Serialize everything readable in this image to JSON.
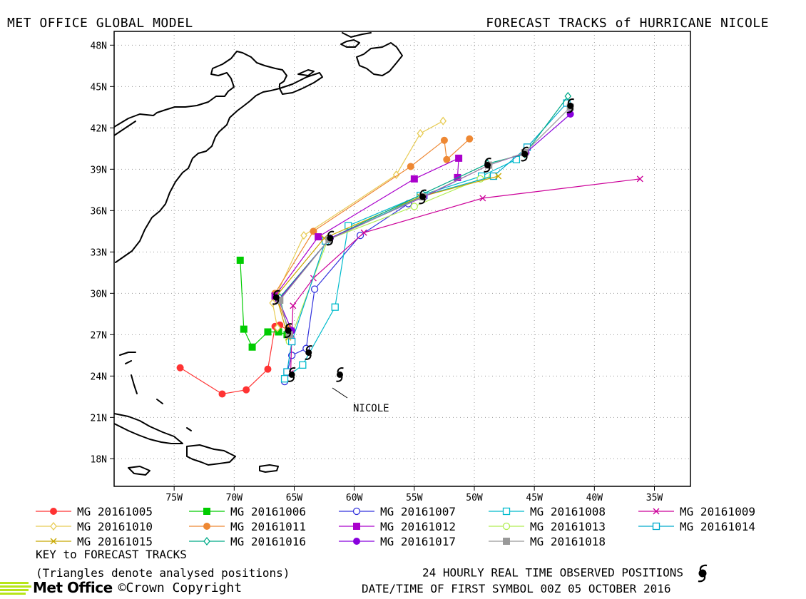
{
  "header": {
    "left_title": "MET OFFICE GLOBAL MODEL",
    "right_title": "FORECAST TRACKS of HURRICANE NICOLE"
  },
  "map": {
    "lon_range": [
      -80,
      -32
    ],
    "lat_range": [
      16,
      49
    ],
    "lon_ticks": [
      "75W",
      "70W",
      "65W",
      "60W",
      "55W",
      "50W",
      "45W",
      "40W",
      "35W"
    ],
    "lat_ticks": [
      "48N",
      "45N",
      "42N",
      "39N",
      "36N",
      "33N",
      "30N",
      "27N",
      "24N",
      "21N",
      "18N"
    ],
    "storm_label": "NICOLE",
    "grid": "dotted"
  },
  "legend": {
    "items": [
      {
        "label": "MG 20161005",
        "color": "#ff3333",
        "marker": "filled-circle"
      },
      {
        "label": "MG 20161006",
        "color": "#00cc00",
        "marker": "filled-square"
      },
      {
        "label": "MG 20161007",
        "color": "#3333dd",
        "marker": "open-circle"
      },
      {
        "label": "MG 20161008",
        "color": "#00bbcc",
        "marker": "open-square"
      },
      {
        "label": "MG 20161009",
        "color": "#cc0099",
        "marker": "cross"
      },
      {
        "label": "MG 20161010",
        "color": "#e8cc55",
        "marker": "open-diamond"
      },
      {
        "label": "MG 20161011",
        "color": "#ee8833",
        "marker": "filled-circle"
      },
      {
        "label": "MG 20161012",
        "color": "#aa00cc",
        "marker": "filled-square"
      },
      {
        "label": "MG 20161013",
        "color": "#b0ee50",
        "marker": "open-circle"
      },
      {
        "label": "MG 20161014",
        "color": "#00aacc",
        "marker": "open-square"
      },
      {
        "label": "MG 20161015",
        "color": "#c8a800",
        "marker": "cross"
      },
      {
        "label": "MG 20161016",
        "color": "#00aa88",
        "marker": "open-diamond"
      },
      {
        "label": "MG 20161017",
        "color": "#8800dd",
        "marker": "filled-circle"
      },
      {
        "label": "MG 20161018",
        "color": "#999999",
        "marker": "filled-square"
      }
    ]
  },
  "footer": {
    "key_title": "KEY to FORECAST TRACKS",
    "key_note": "(Triangles denote analysed positions)",
    "obs_note": "24 HOURLY REAL TIME OBSERVED POSITIONS",
    "date_note": "DATE/TIME OF FIRST SYMBOL 00Z 05 OCTOBER 2016",
    "logo_text": "Met Office",
    "copyright": "©Crown Copyright"
  },
  "tracks": [
    {
      "name": "MG 20161005",
      "color": "#ff3333",
      "marker": "filled-circle",
      "points": [
        [
          -74.5,
          24.6
        ],
        [
          -71,
          22.7
        ],
        [
          -69,
          23
        ],
        [
          -67.2,
          24.5
        ],
        [
          -66.6,
          27.6
        ],
        [
          -66.2,
          27.7
        ],
        [
          -65.5,
          27.3
        ]
      ]
    },
    {
      "name": "MG 20161006",
      "color": "#00cc00",
      "marker": "filled-square",
      "points": [
        [
          -69.5,
          32.4
        ],
        [
          -69.2,
          27.4
        ],
        [
          -68.5,
          26.1
        ],
        [
          -67.2,
          27.2
        ],
        [
          -66.3,
          27.2
        ],
        [
          -65.6,
          27
        ]
      ]
    },
    {
      "name": "MG 20161007",
      "color": "#3333dd",
      "marker": "open-circle",
      "points": [
        [
          -65.8,
          23.6
        ],
        [
          -65.2,
          25.5
        ],
        [
          -64,
          26
        ],
        [
          -63.3,
          30.3
        ],
        [
          -59.5,
          34.2
        ],
        [
          -55.5,
          36.5
        ]
      ]
    },
    {
      "name": "MG 20161008",
      "color": "#00bbcc",
      "marker": "open-square",
      "points": [
        [
          -65.8,
          23.8
        ],
        [
          -64.3,
          24.8
        ],
        [
          -61.6,
          29
        ],
        [
          -60.5,
          34.9
        ],
        [
          -54.5,
          37.1
        ],
        [
          -49.4,
          38.5
        ],
        [
          -46.5,
          39.7
        ]
      ]
    },
    {
      "name": "MG 20161009",
      "color": "#cc0099",
      "marker": "cross",
      "points": [
        [
          -65.3,
          24.2
        ],
        [
          -65.2,
          27
        ],
        [
          -65.1,
          29.1
        ],
        [
          -63.4,
          31.1
        ],
        [
          -59.2,
          34.4
        ],
        [
          -49.3,
          36.9
        ],
        [
          -36.2,
          38.3
        ]
      ]
    },
    {
      "name": "MG 20161010",
      "color": "#e8cc55",
      "marker": "open-diamond",
      "points": [
        [
          -66.4,
          27.5
        ],
        [
          -66.8,
          29.3
        ],
        [
          -64.2,
          34.2
        ],
        [
          -56.5,
          38.6
        ],
        [
          -54.5,
          41.6
        ],
        [
          -52.6,
          42.5
        ]
      ]
    },
    {
      "name": "MG 20161011",
      "color": "#ee8833",
      "marker": "filled-circle",
      "points": [
        [
          -65.5,
          27.5
        ],
        [
          -66.6,
          30
        ],
        [
          -63.4,
          34.5
        ],
        [
          -55.3,
          39.2
        ],
        [
          -52.5,
          41.1
        ],
        [
          -52.3,
          39.7
        ],
        [
          -50.4,
          41.2
        ]
      ]
    },
    {
      "name": "MG 20161012",
      "color": "#aa00cc",
      "marker": "filled-square",
      "points": [
        [
          -66.6,
          29.8
        ],
        [
          -63,
          34.1
        ],
        [
          -55,
          38.3
        ],
        [
          -51.3,
          39.8
        ],
        [
          -51.4,
          38.4
        ]
      ]
    },
    {
      "name": "MG 20161013",
      "color": "#b0ee50",
      "marker": "open-circle",
      "points": [
        [
          -65.4,
          26.5
        ],
        [
          -62.2,
          33.9
        ],
        [
          -55,
          36.3
        ],
        [
          -49.5,
          38.3
        ],
        [
          -48.5,
          38.5
        ]
      ]
    },
    {
      "name": "MG 20161014",
      "color": "#00aacc",
      "marker": "open-square",
      "points": [
        [
          -65.6,
          24.3
        ],
        [
          -65.2,
          26.5
        ],
        [
          -62.4,
          33.8
        ],
        [
          -54.2,
          37.1
        ],
        [
          -48.4,
          38.5
        ],
        [
          -45.6,
          40.6
        ],
        [
          -42.3,
          43.8
        ]
      ]
    },
    {
      "name": "MG 20161015",
      "color": "#c8a800",
      "marker": "cross",
      "points": [
        [
          -65.5,
          26.8
        ],
        [
          -66.5,
          29.8
        ],
        [
          -62.5,
          34
        ],
        [
          -54.5,
          37
        ],
        [
          -48,
          38.5
        ]
      ]
    },
    {
      "name": "MG 20161016",
      "color": "#00aa88",
      "marker": "open-diamond",
      "points": [
        [
          -65.5,
          27.2
        ],
        [
          -66.2,
          29.7
        ],
        [
          -62,
          34
        ],
        [
          -54.3,
          37.2
        ],
        [
          -48.9,
          39.4
        ],
        [
          -45.8,
          40.1
        ],
        [
          -42.2,
          44.3
        ]
      ]
    },
    {
      "name": "MG 20161017",
      "color": "#8800dd",
      "marker": "filled-circle",
      "points": [
        [
          -65.2,
          27.3
        ],
        [
          -66.3,
          29.5
        ],
        [
          -62,
          34
        ],
        [
          -54.2,
          37
        ],
        [
          -48.8,
          39.3
        ],
        [
          -45.7,
          40.2
        ],
        [
          -42,
          43
        ]
      ]
    },
    {
      "name": "MG 20161018",
      "color": "#999999",
      "marker": "filled-square",
      "points": [
        [
          -65.4,
          27
        ],
        [
          -66.2,
          29.5
        ],
        [
          -62.1,
          33.9
        ],
        [
          -54.3,
          37
        ],
        [
          -48.8,
          39.3
        ],
        [
          -45.8,
          40.2
        ],
        [
          -42,
          43.5
        ]
      ]
    }
  ],
  "observed": [
    [
      -61.2,
      24.1
    ],
    [
      -63.8,
      25.7
    ],
    [
      -65.2,
      24.1
    ],
    [
      -65.5,
      27.3
    ],
    [
      -66.5,
      29.7
    ],
    [
      -62,
      34
    ],
    [
      -54.3,
      37
    ],
    [
      -48.9,
      39.3
    ],
    [
      -45.8,
      40.1
    ],
    [
      -42,
      43.6
    ]
  ]
}
